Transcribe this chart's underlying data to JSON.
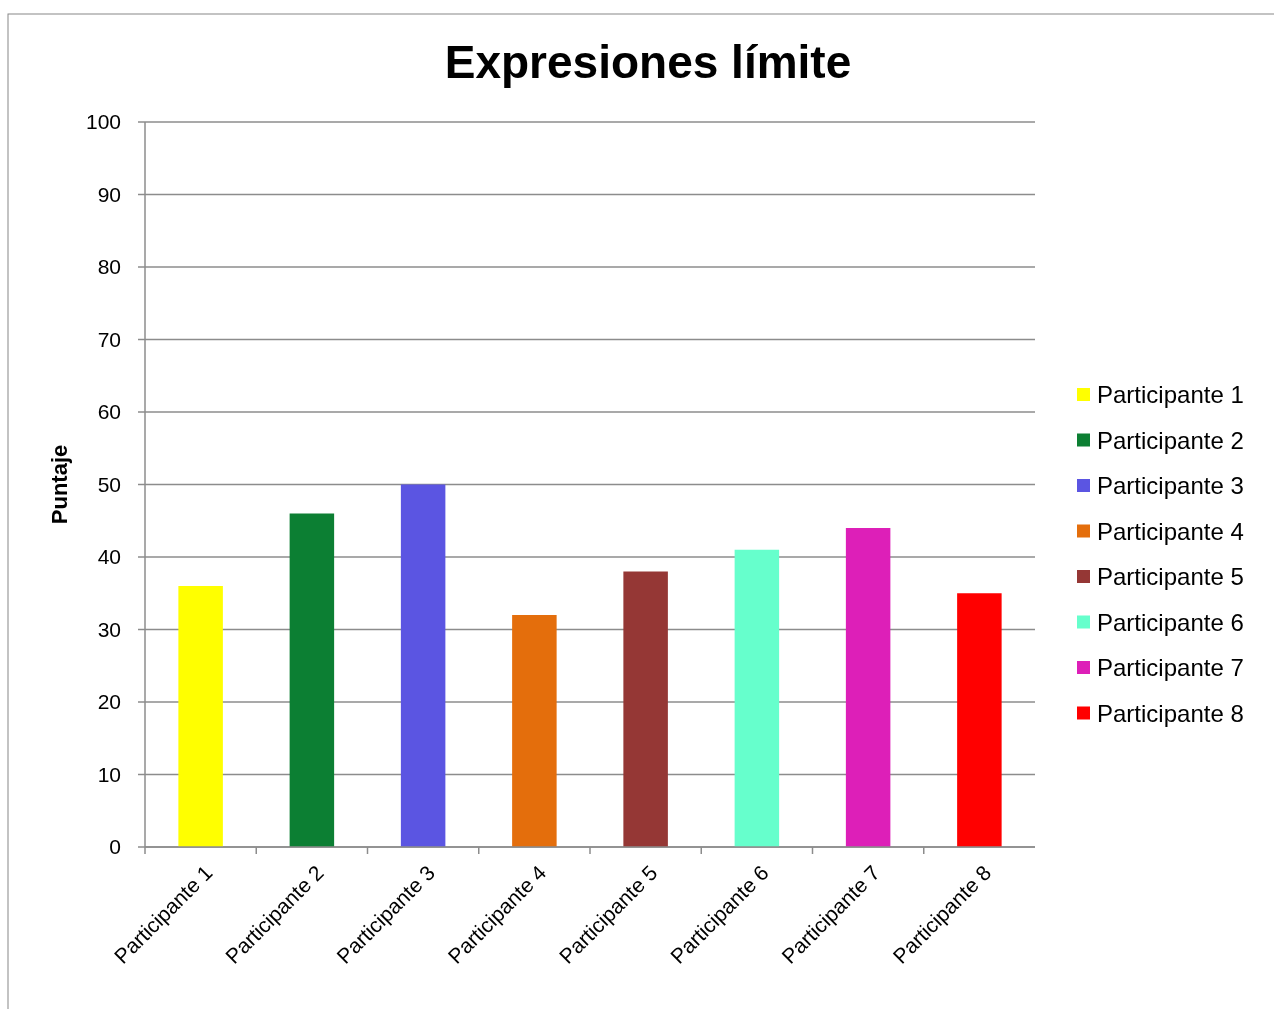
{
  "chart_data": {
    "type": "bar",
    "title": "Expresiones límite",
    "ylabel": "Puntaje",
    "stacked": true,
    "categories": [
      "Participante 1",
      "Participante 2",
      "Participante 3",
      "Participante 4",
      "Participante 5",
      "Participante 6",
      "Participante 7",
      "Participante 8"
    ],
    "series": [
      {
        "name": "Participante 1",
        "color": "#ffff00",
        "values": [
          36,
          null,
          null,
          null,
          null,
          null,
          null,
          null
        ]
      },
      {
        "name": "Participante 2",
        "color": "#0c7f33",
        "values": [
          null,
          46,
          null,
          null,
          null,
          null,
          null,
          null
        ]
      },
      {
        "name": "Participante 3",
        "color": "#5b55e2",
        "values": [
          null,
          null,
          50,
          null,
          null,
          null,
          null,
          null
        ]
      },
      {
        "name": "Participante 4",
        "color": "#e46e0c",
        "values": [
          null,
          null,
          null,
          32,
          null,
          null,
          null,
          null
        ]
      },
      {
        "name": "Participante 5",
        "color": "#953735",
        "values": [
          null,
          null,
          null,
          null,
          38,
          null,
          null,
          null
        ]
      },
      {
        "name": "Participante 6",
        "color": "#66ffcc",
        "values": [
          null,
          null,
          null,
          null,
          null,
          41,
          null,
          null
        ]
      },
      {
        "name": "Participante 7",
        "color": "#dd1fb8",
        "values": [
          null,
          null,
          null,
          null,
          null,
          null,
          44,
          null
        ]
      },
      {
        "name": "Participante 8",
        "color": "#ff0000",
        "values": [
          null,
          null,
          null,
          null,
          null,
          null,
          null,
          35
        ]
      }
    ],
    "ylim": [
      0,
      100
    ],
    "yticks": [
      0,
      10,
      20,
      30,
      40,
      50,
      60,
      70,
      80,
      90,
      100
    ],
    "grid": "y",
    "legend": "right"
  }
}
